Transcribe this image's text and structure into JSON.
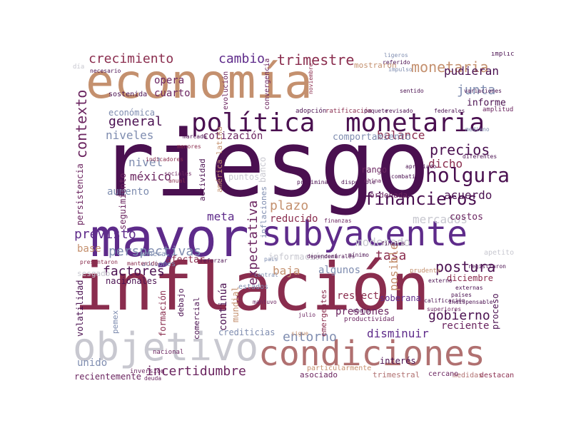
{
  "palette": {
    "dark_purple": "#4a1050",
    "purple": "#5e2b8a",
    "plum": "#6b2560",
    "wine": "#8a2d4e",
    "tan": "#c4906e",
    "rose": "#b07070",
    "slate": "#7f8db0",
    "gray": "#c8c8d0"
  },
  "words": {
    "riesgo": "riesgo",
    "inflacion": "inflación",
    "mayor": "mayor",
    "economia": "economía",
    "politica": "política",
    "monetaria_big": "monetaria",
    "subyacente": "subyacente",
    "condiciones": "condiciones",
    "objetivo": "objetivo",
    "holgura": "holgura",
    "financieros": "financieros",
    "crecimiento": "crecimiento",
    "cambio": "cambio",
    "trimestre": "trimestre",
    "monetaria_small": "monetaria",
    "pudieran": "pudieran",
    "junta": "junta",
    "contexto": "contexto",
    "general": "general",
    "niveles": "niveles",
    "cotizacion": "cotización",
    "precios": "precios",
    "balance": "balance",
    "dicho": "dicho",
    "nivel": "nivel",
    "mexico": "méxico",
    "aumento": "aumento",
    "activos": "activos",
    "plazo": "plazo",
    "reducido": "reducido",
    "mercados": "mercados",
    "acuerdo": "acuerdo",
    "expectativa": "expectativa",
    "previsto": "previsto",
    "meta": "meta",
    "perspectivas": "perspectivas",
    "base": "base",
    "tasa": "tasa",
    "moderado": "moderado",
    "baja": "baja",
    "algunos": "algunos",
    "postura": "postura",
    "factores": "factores",
    "continua": "continúa",
    "entorno": "entorno",
    "respecto": "respecto",
    "presiones": "presiones",
    "disminuir": "disminuir",
    "gobierno": "gobierno",
    "reciente": "reciente",
    "incertidumbre": "incertidumbre",
    "posible": "posible",
    "opera": "opera",
    "cuarto": "cuarto",
    "economica": "económica",
    "informe": "informe",
    "comportamiento": "comportamiento",
    "seguimiento": "seguimiento",
    "persistencia": "persistencia",
    "rango": "rango",
    "costos": "costos",
    "informacion": "información",
    "afectar": "afectar",
    "nacionales": "nacionales",
    "volatilidad": "volatilidad",
    "formacion": "formación",
    "mundial": "mundial",
    "crediticias": "crediticias",
    "interes": "interés",
    "unido": "unido",
    "recientemente": "recientemente",
    "diciembre": "diciembre",
    "proceso": "proceso",
    "actividad": "actividad",
    "puntos": "puntos",
    "pemex": "pemex",
    "debajo": "debajo",
    "comercial": "comercial",
    "soberana": "soberana",
    "emergentes": "emergentes",
    "ordenada": "ordenada",
    "evolucion": "evolución",
    "convergencia": "convergencia",
    "sostenida": "sostenida",
    "asociado": "asociado",
    "trimestral": "trimestral",
    "medidas": "medidas",
    "destacando": "destacando",
    "cercano": "cercano",
    "america_latina": "américa latina",
    "banco": "banco",
    "inflaciones": "inflaciones",
    "central": "central",
    "sesgado": "sesgado",
    "manera": "manera",
    "acciones": "acciones",
    "mantenido": "mantenido",
    "presentaron": "presentaron",
    "inversion": "inversión",
    "nacional": "nacional",
    "deuda": "deuda",
    "particularmente": "particularmente",
    "finales": "finales",
    "sigue": "sigue",
    "julio": "julio",
    "mantuvo": "mantuvo",
    "estados": "estados",
    "superiores": "superiores",
    "externo": "externo",
    "externas": "externas",
    "mostraron": "mostraron",
    "implica": "implica",
    "apetito": "apetito",
    "registraron": "registraron",
    "adopcion": "adopción",
    "ratificacion": "ratificación",
    "paquete": "paquete",
    "revisado": "revisado",
    "federales": "federales",
    "amplitud": "amplitud",
    "señales": "señales",
    "dia": "día",
    "necesario": "necesario",
    "referido": "referido",
    "ligeros": "ligeros",
    "impulso": "impulso",
    "variaciones": "variaciones",
    "noviembre": "noviembre",
    "pais": "país",
    "mediano": "mediano",
    "sentido": "sentido",
    "minimo": "mínimo",
    "finanzas": "finanzas",
    "china": "china",
    "disponible": "disponible",
    "preliminar": "preliminar",
    "indicadores": "indicadores",
    "menores": "menores",
    "anual": "anual",
    "marcada": "marcada",
    "sociales": "sociales",
    "reforzar": "reforzar",
    "productividad": "productividad",
    "prudente": "prudente",
    "calificacion": "calificación",
    "indispensable": "indispensable",
    "paises": "países",
    "diferentes": "diferentes",
    "combatir": "combatir",
    "apropiado": "apropiado",
    "centrales": "centrales",
    "dependera": "dependerá",
    "abajo": "abajo"
  }
}
